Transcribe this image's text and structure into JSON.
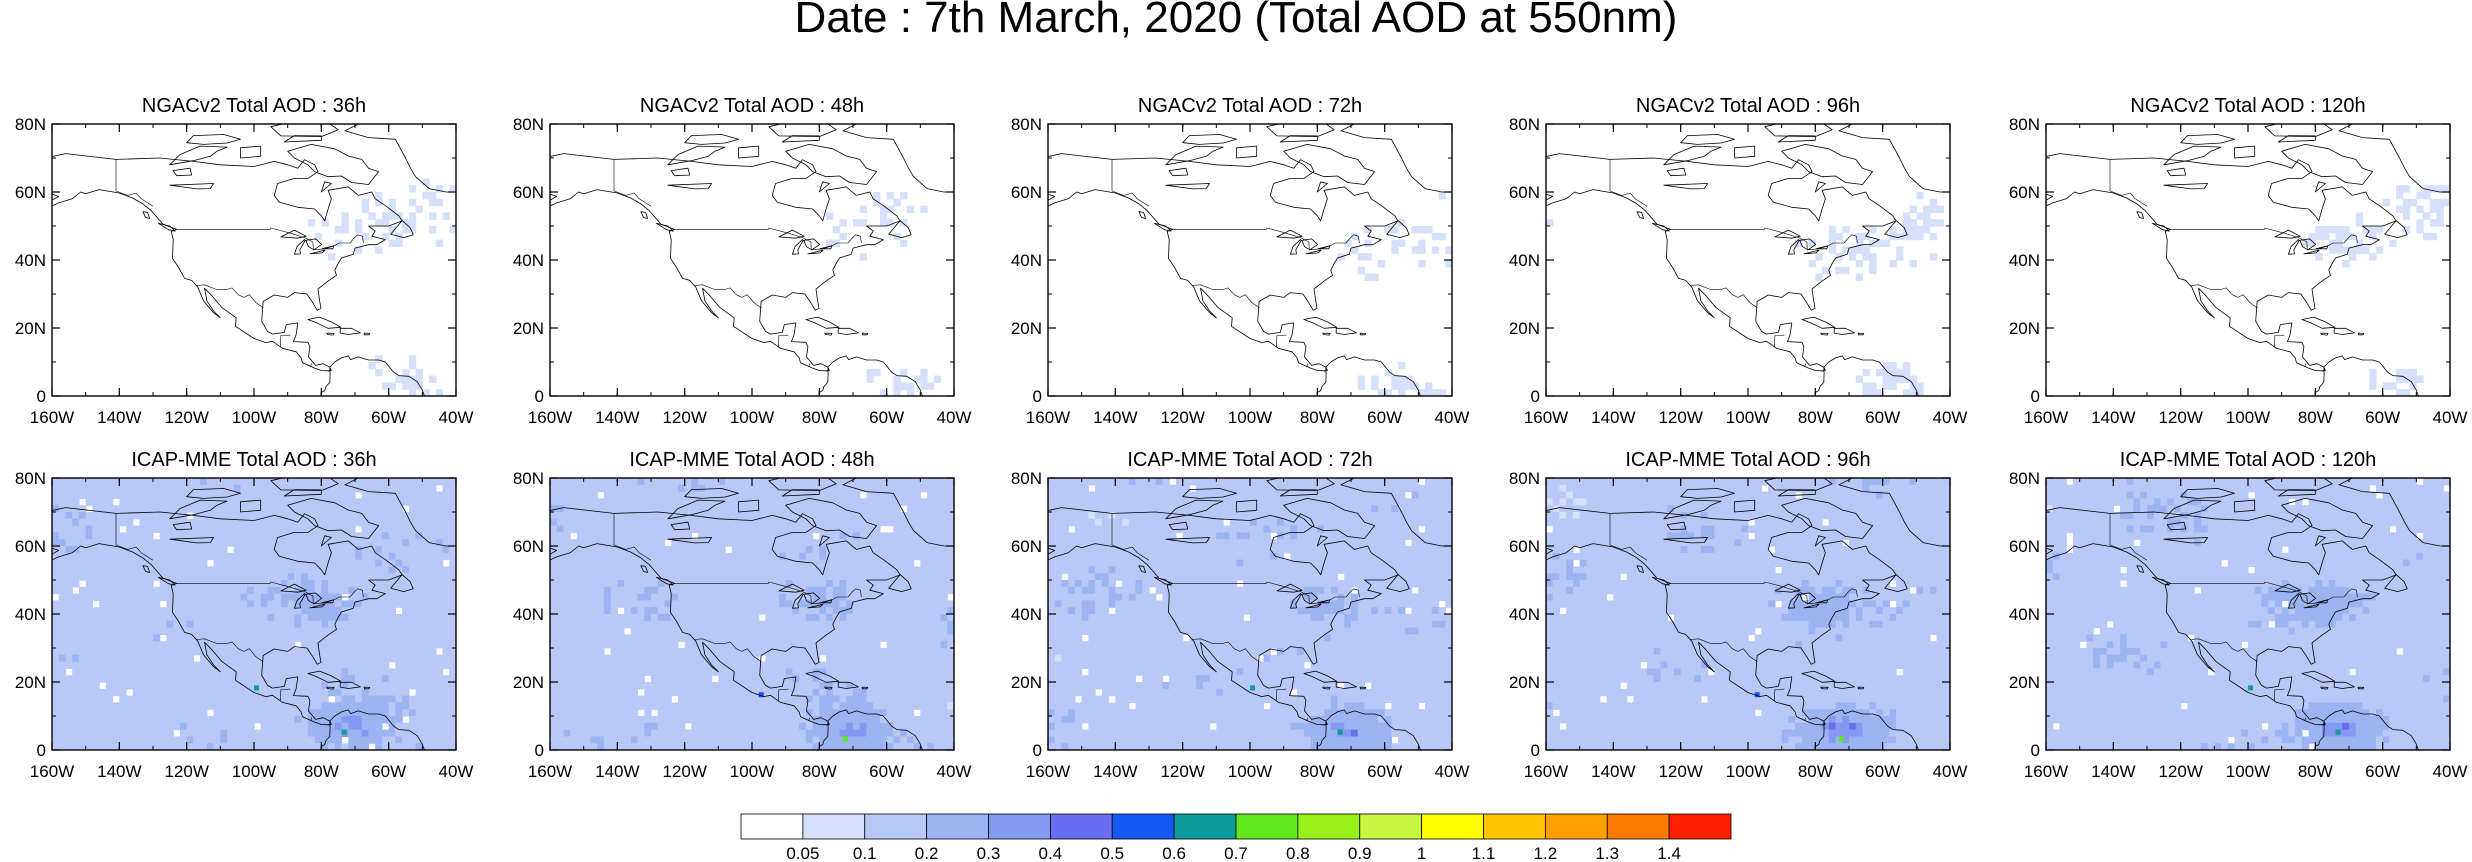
{
  "title": "Date : 7th March, 2020 (Total AOD at 550nm)",
  "lat_ticks": [
    "0",
    "20N",
    "40N",
    "60N",
    "80N"
  ],
  "lon_ticks": [
    "160W",
    "140W",
    "120W",
    "100W",
    "80W",
    "60W",
    "40W"
  ],
  "rows": [
    {
      "model": "NGACv2",
      "panels": [
        {
          "title": "NGACv2 Total AOD : 36h",
          "lead_hours": 36
        },
        {
          "title": "NGACv2 Total AOD : 48h",
          "lead_hours": 48
        },
        {
          "title": "NGACv2 Total AOD : 72h",
          "lead_hours": 72
        },
        {
          "title": "NGACv2 Total AOD : 96h",
          "lead_hours": 96
        },
        {
          "title": "NGACv2 Total AOD : 120h",
          "lead_hours": 120
        }
      ]
    },
    {
      "model": "ICAP-MME",
      "panels": [
        {
          "title": "ICAP-MME Total AOD : 36h",
          "lead_hours": 36
        },
        {
          "title": "ICAP-MME Total AOD : 48h",
          "lead_hours": 48
        },
        {
          "title": "ICAP-MME Total AOD : 72h",
          "lead_hours": 72
        },
        {
          "title": "ICAP-MME Total AOD : 96h",
          "lead_hours": 96
        },
        {
          "title": "ICAP-MME Total AOD : 120h",
          "lead_hours": 120
        }
      ]
    }
  ],
  "colorbar": {
    "labels": [
      "0.05",
      "0.1",
      "0.2",
      "0.3",
      "0.4",
      "0.5",
      "0.6",
      "0.7",
      "0.8",
      "0.9",
      "1",
      "1.1",
      "1.2",
      "1.3",
      "1.4"
    ],
    "colors": [
      "#ffffff",
      "#d6e0fb",
      "#b8c8f7",
      "#9db4f3",
      "#8499f0",
      "#6a6df0",
      "#1458f5",
      "#0b9b98",
      "#5fe61c",
      "#98f11a",
      "#c6f542",
      "#ffff00",
      "#ffc400",
      "#ffa000",
      "#ff7a00",
      "#ff2000"
    ]
  }
}
